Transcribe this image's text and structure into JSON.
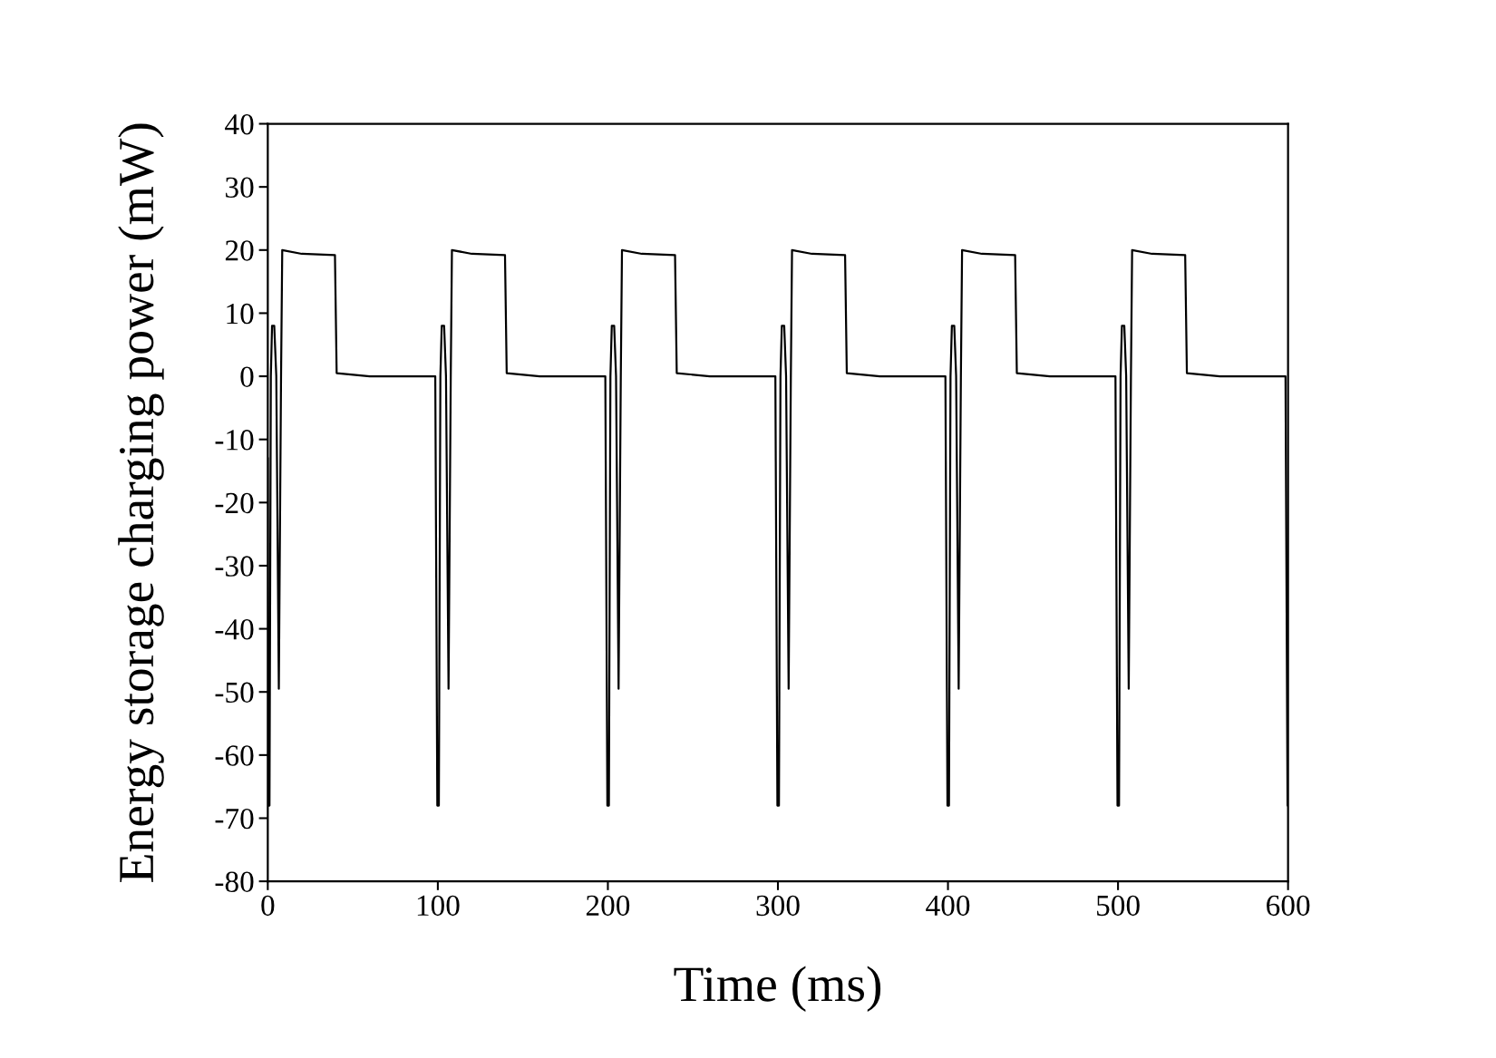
{
  "chart_data": {
    "type": "line",
    "xlabel": "Time (ms)",
    "ylabel": "Energy storage charging power (mW)",
    "xlim": [
      0,
      600
    ],
    "xticks": [
      0,
      100,
      200,
      300,
      400,
      500,
      600
    ],
    "ylim": [
      -80,
      40
    ],
    "yticks": [
      -80,
      -70,
      -60,
      -50,
      -40,
      -30,
      -20,
      -10,
      0,
      10,
      20,
      30,
      40
    ],
    "grid": false,
    "marker": "none",
    "line_style": "solid",
    "series": [
      {
        "color": "#000000",
        "x": [
          0,
          0.3,
          1,
          1.8,
          2.5,
          3.8,
          5,
          6.5,
          7.8,
          8.5,
          20,
          39.5,
          40.5,
          60,
          98.5,
          99.7,
          100.6,
          101.5,
          102.3,
          103.7,
          104.8,
          106.3,
          107.6,
          108.3,
          120,
          139.5,
          140.5,
          160,
          198.5,
          199.7,
          200.6,
          201.5,
          202.3,
          203.7,
          204.8,
          206.3,
          207.6,
          208.3,
          220,
          239.5,
          240.5,
          260,
          298.5,
          299.7,
          300.6,
          301.5,
          302.3,
          303.7,
          304.8,
          306.3,
          307.6,
          308.3,
          320,
          339.5,
          340.5,
          360,
          398.5,
          399.7,
          400.6,
          401.5,
          402.3,
          403.7,
          404.8,
          406.3,
          407.6,
          408.3,
          420,
          439.5,
          440.5,
          460,
          498.5,
          499.7,
          500.6,
          501.5,
          502.3,
          503.7,
          504.8,
          506.3,
          507.6,
          508.3,
          520,
          539.5,
          540.5,
          560,
          598.5,
          599.7,
          600
        ],
        "values": [
          -13,
          -68,
          -68,
          0,
          8,
          8,
          0,
          -49.5,
          0,
          20,
          19.4,
          19.2,
          0.5,
          0,
          0,
          -68,
          -68,
          0,
          8,
          8,
          0,
          -49.5,
          0,
          20,
          19.4,
          19.2,
          0.5,
          0,
          0,
          -68,
          -68,
          0,
          8,
          8,
          0,
          -49.5,
          0,
          20,
          19.4,
          19.2,
          0.5,
          0,
          0,
          -68,
          -68,
          0,
          8,
          8,
          0,
          -49.5,
          0,
          20,
          19.4,
          19.2,
          0.5,
          0,
          0,
          -68,
          -68,
          0,
          8,
          8,
          0,
          -49.5,
          0,
          20,
          19.4,
          19.2,
          0.5,
          0,
          0,
          -68,
          -68,
          0,
          8,
          8,
          0,
          -49.5,
          0,
          20,
          19.4,
          19.2,
          0.5,
          0,
          0,
          -68,
          -68
        ]
      }
    ]
  }
}
